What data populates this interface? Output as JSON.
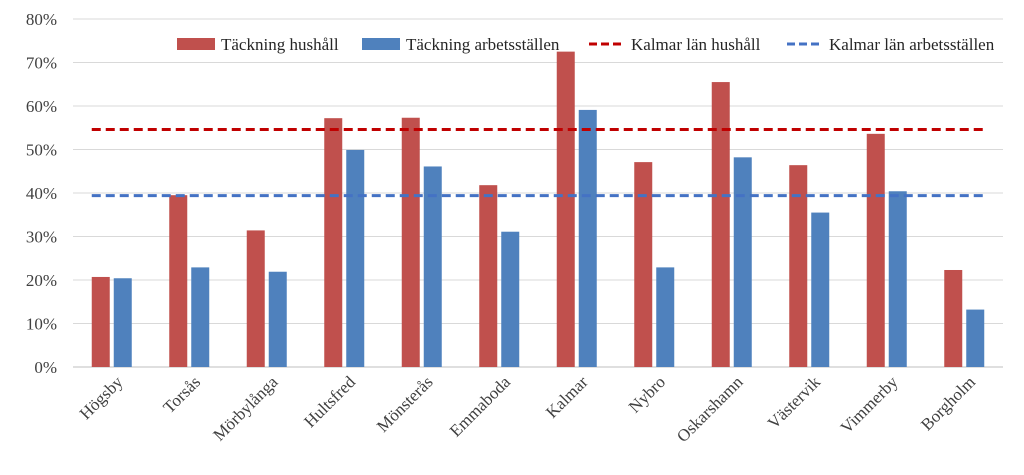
{
  "chart_data": {
    "type": "bar",
    "categories": [
      "Högsby",
      "Torsås",
      "Mörbylånga",
      "Hultsfred",
      "Mönsterås",
      "Emmaboda",
      "Kalmar",
      "Nybro",
      "Oskarshamn",
      "Västervik",
      "Vimmerby",
      "Borgholm"
    ],
    "series": [
      {
        "name": "Täckning hushåll",
        "kind": "bar",
        "color": "#C0504D",
        "values": [
          0.207,
          0.395,
          0.314,
          0.572,
          0.573,
          0.418,
          0.725,
          0.471,
          0.655,
          0.464,
          0.536,
          0.223
        ]
      },
      {
        "name": "Täckning arbetsställen",
        "kind": "bar",
        "color": "#4F81BD",
        "values": [
          0.204,
          0.229,
          0.219,
          0.499,
          0.461,
          0.311,
          0.591,
          0.229,
          0.482,
          0.355,
          0.404,
          0.132
        ]
      },
      {
        "name": "Kalmar län hushåll",
        "kind": "dashed-line",
        "color": "#C00000",
        "value": 0.546
      },
      {
        "name": "Kalmar län arbetsställen",
        "kind": "dashed-line",
        "color": "#4472C4",
        "value": 0.394
      }
    ],
    "ylim": [
      0,
      0.8
    ],
    "yticks": [
      0,
      0.1,
      0.2,
      0.3,
      0.4,
      0.5,
      0.6,
      0.7,
      0.8
    ],
    "ytick_labels": [
      "0%",
      "10%",
      "20%",
      "30%",
      "40%",
      "50%",
      "60%",
      "70%",
      "80%"
    ],
    "grid": "horizontal",
    "legend_position": "top-right",
    "gridline_color": "#D9D9D9"
  }
}
